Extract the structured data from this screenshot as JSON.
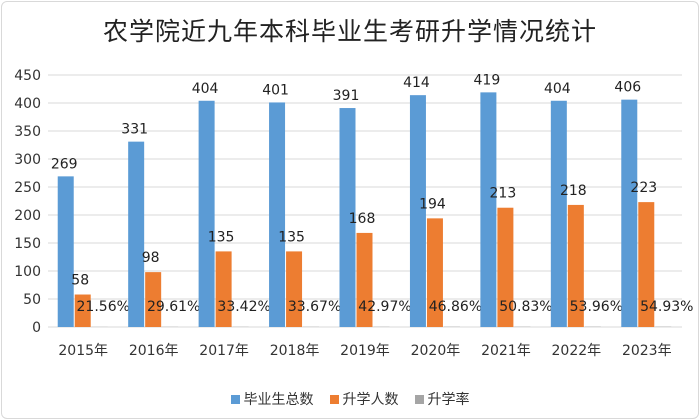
{
  "colors": {
    "graduates": "#5b9bd5",
    "enrolled": "#ed7d31",
    "rate": "#a5a5a5",
    "grid": "#d9d9d9"
  },
  "chart_data": {
    "type": "bar",
    "title": "农学院近九年本科毕业生考研升学情况统计",
    "categories": [
      "2015年",
      "2016年",
      "2017年",
      "2018年",
      "2019年",
      "2020年",
      "2021年",
      "2022年",
      "2023年"
    ],
    "series": [
      {
        "name": "毕业生总数",
        "values": [
          269,
          331,
          404,
          401,
          391,
          414,
          419,
          404,
          406
        ]
      },
      {
        "name": "升学人数",
        "values": [
          58,
          98,
          135,
          135,
          168,
          194,
          213,
          218,
          223
        ]
      },
      {
        "name": "升学率",
        "values": [
          0.2156,
          0.2961,
          0.3342,
          0.3367,
          0.4297,
          0.4686,
          0.5083,
          0.5396,
          0.5493
        ]
      }
    ],
    "rate_labels": [
      "21.56%",
      "29.61%",
      "33.42%",
      "33.67%",
      "42.97%",
      "46.86%",
      "50.83%",
      "53.96%",
      "54.93%"
    ],
    "y_ticks": [
      "0",
      "50",
      "100",
      "150",
      "200",
      "250",
      "300",
      "350",
      "400",
      "450"
    ],
    "ylim": [
      0,
      450
    ],
    "grid": true,
    "legend_position": "bottom"
  }
}
